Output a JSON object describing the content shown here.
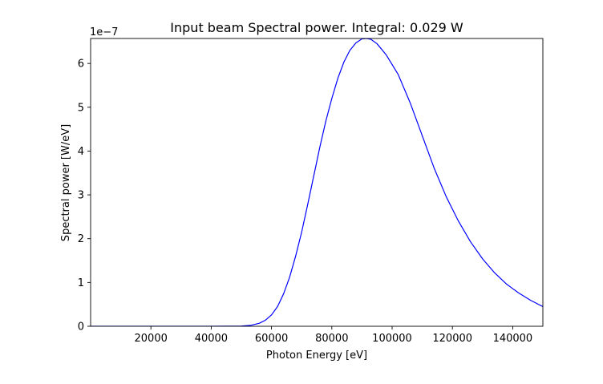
{
  "chart_data": {
    "type": "line",
    "title": "Input beam Spectral power. Integral:  0.029 W",
    "xlabel": "Photon Energy [eV]",
    "ylabel": "Spectral power [W/eV]",
    "y_offset_label": "1e−7",
    "y_scale": 1e-07,
    "xlim": [
      0,
      150000
    ],
    "ylim": [
      0,
      6.57
    ],
    "x_ticks": [
      20000,
      40000,
      60000,
      80000,
      100000,
      120000,
      140000
    ],
    "x_tick_labels": [
      "20000",
      "40000",
      "60000",
      "80000",
      "100000",
      "120000",
      "140000"
    ],
    "y_ticks": [
      0,
      1,
      2,
      3,
      4,
      5,
      6
    ],
    "y_tick_labels": [
      "0",
      "1",
      "2",
      "3",
      "4",
      "5",
      "6"
    ],
    "grid": false,
    "line_color": "#0000ff",
    "series": [
      {
        "x": [
          0,
          20000,
          40000,
          50000,
          53000,
          56000,
          58000,
          60000,
          62000,
          64000,
          66000,
          68000,
          70000,
          72000,
          74000,
          76000,
          78000,
          80000,
          82000,
          84000,
          86000,
          88000,
          90000,
          91500,
          93000,
          95000,
          98000,
          102000,
          106000,
          110000,
          114000,
          118000,
          122000,
          126000,
          130000,
          134000,
          138000,
          142000,
          146000,
          150000
        ],
        "y": [
          0,
          0,
          0,
          0.005,
          0.02,
          0.07,
          0.14,
          0.26,
          0.45,
          0.74,
          1.12,
          1.6,
          2.15,
          2.78,
          3.43,
          4.08,
          4.68,
          5.2,
          5.66,
          6.03,
          6.3,
          6.47,
          6.56,
          6.57,
          6.55,
          6.45,
          6.2,
          5.75,
          5.1,
          4.35,
          3.6,
          2.95,
          2.4,
          1.93,
          1.54,
          1.22,
          0.96,
          0.76,
          0.59,
          0.45
        ]
      }
    ]
  }
}
